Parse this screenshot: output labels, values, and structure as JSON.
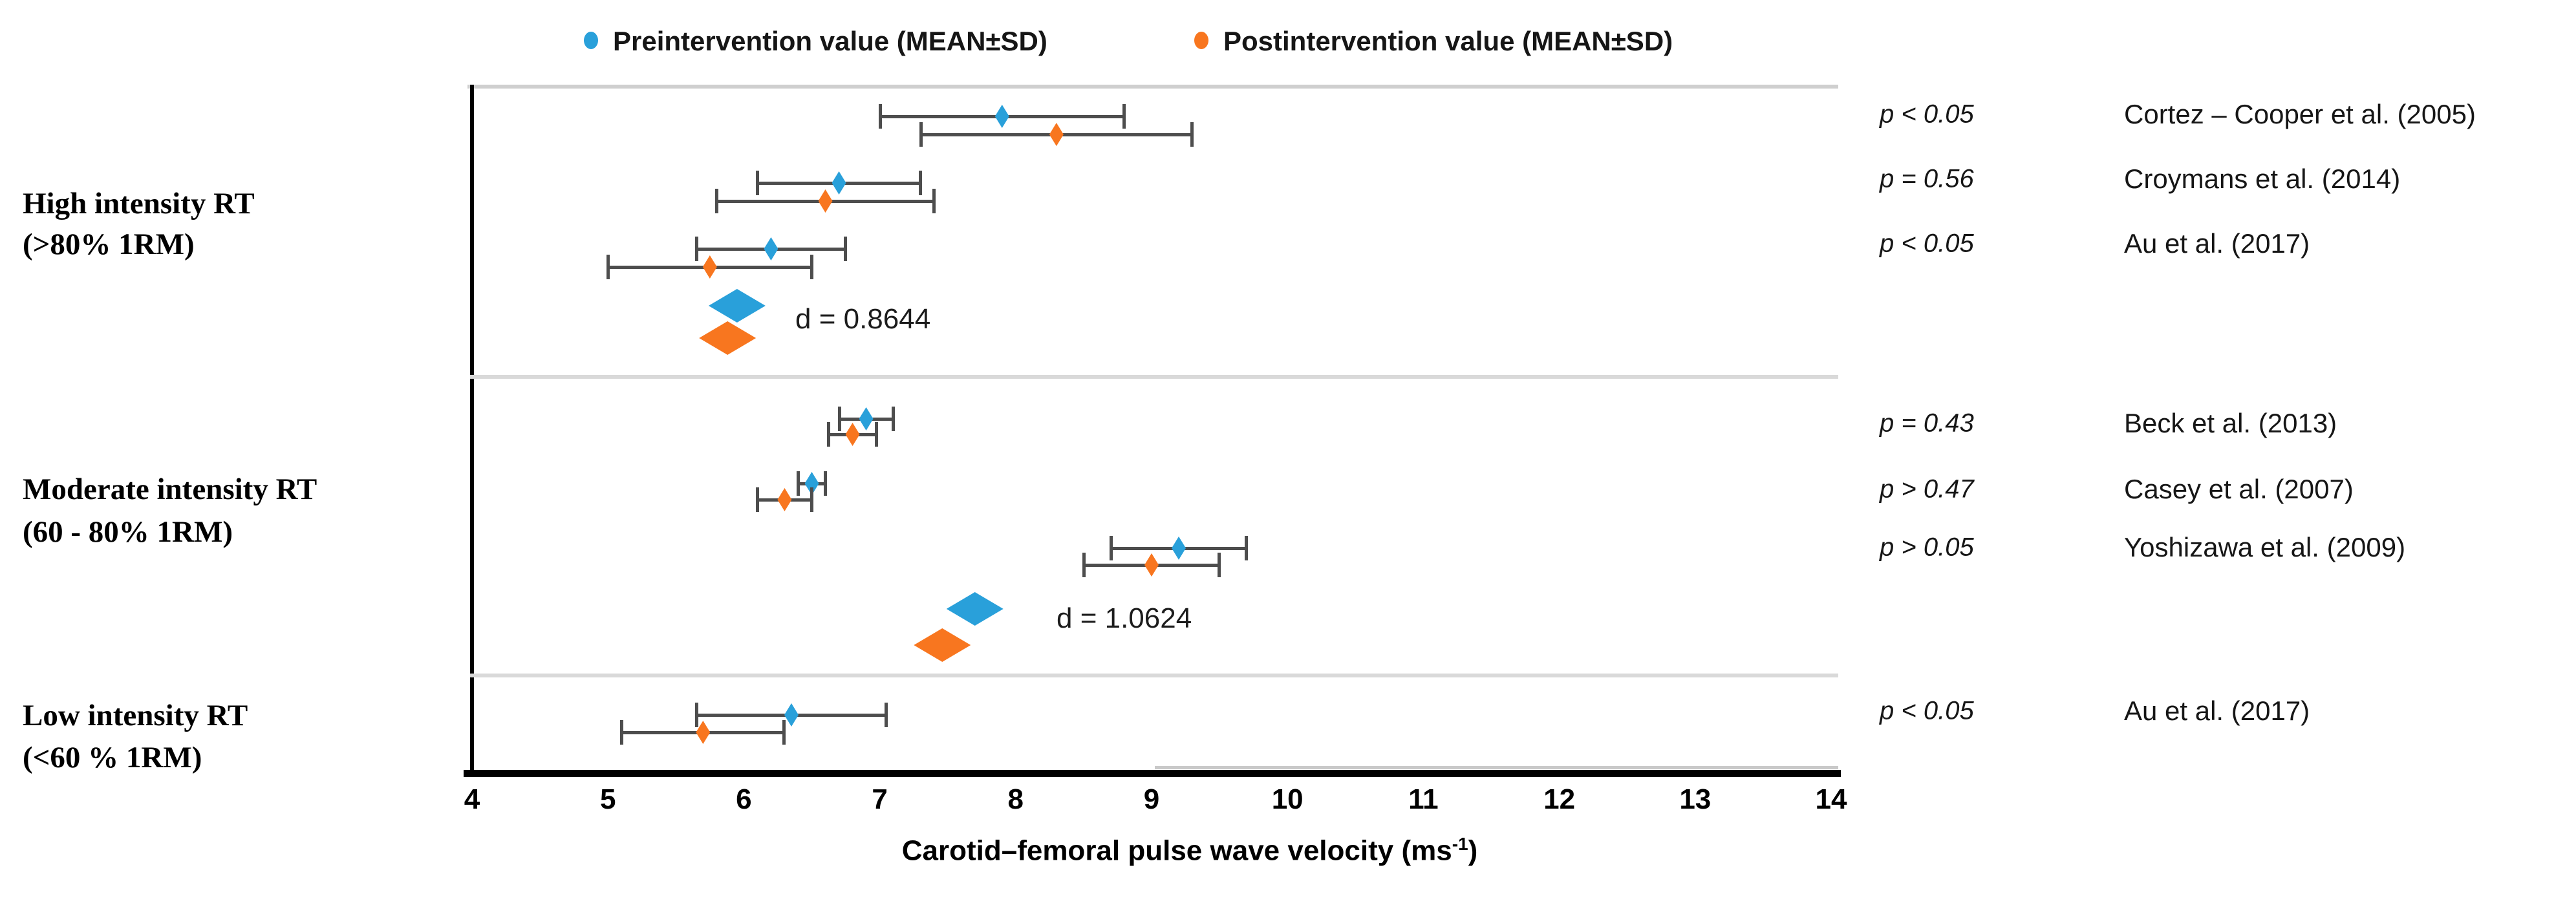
{
  "figure": {
    "type_note": "Forest-style dot plot of pre vs post intervention carotid-femoral pulse wave velocity grouped by resistance-training intensity"
  },
  "chart_data": {
    "type": "scatter",
    "legend": {
      "pre_label": "Preintervention value (MEAN±SD)",
      "post_label": "Postintervention value (MEAN±SD)"
    },
    "colors": {
      "pre": "#29A0DA",
      "post": "#F8761F",
      "error_bar": "#4D4D4D",
      "divider": "#D9D9D9",
      "top_border": "#CFCFCF",
      "axis": "#000000"
    },
    "xlabel_main": "Carotid–femoral pulse wave velocity (ms",
    "xlabel_sup": "-1",
    "xlabel_close": ")",
    "xlim": [
      4,
      14
    ],
    "ticks": [
      4,
      5,
      6,
      7,
      8,
      9,
      10,
      11,
      12,
      13,
      14
    ],
    "grid": "off",
    "legend_position": "top",
    "groups": [
      {
        "label": [
          "High intensity RT",
          "(>80% 1RM)"
        ],
        "studies": [
          {
            "study": "Cortez – Cooper et al. (2005)",
            "p": "p < 0.05",
            "pre": {
              "mean": 7.9,
              "sd": 0.9
            },
            "post": {
              "mean": 8.3,
              "sd": 1.0
            }
          },
          {
            "study": "Croymans et al. (2014)",
            "p": "p = 0.56",
            "pre": {
              "mean": 6.7,
              "sd": 0.6
            },
            "post": {
              "mean": 6.6,
              "sd": 0.8
            }
          },
          {
            "study": "Au et al. (2017)",
            "p": "p < 0.05",
            "pre": {
              "mean": 6.2,
              "sd": 0.55
            },
            "post": {
              "mean": 5.75,
              "sd": 0.75
            }
          }
        ],
        "effect": {
          "label": "d = 0.8644",
          "pre_mean": 5.95,
          "post_mean": 5.88
        }
      },
      {
        "label": [
          "Moderate intensity RT",
          "(60 - 80% 1RM)"
        ],
        "studies": [
          {
            "study": "Beck et al. (2013)",
            "p": "p = 0.43",
            "pre": {
              "mean": 6.9,
              "sd": 0.2
            },
            "post": {
              "mean": 6.8,
              "sd": 0.18
            }
          },
          {
            "study": "Casey et al. (2007)",
            "p": "p > 0.47",
            "pre": {
              "mean": 6.5,
              "sd": 0.1
            },
            "post": {
              "mean": 6.3,
              "sd": 0.2
            }
          },
          {
            "study": "Yoshizawa et al. (2009)",
            "p": "p > 0.05",
            "pre": {
              "mean": 9.2,
              "sd": 0.5
            },
            "post": {
              "mean": 9.0,
              "sd": 0.5
            }
          }
        ],
        "effect": {
          "label": "d = 1.0624",
          "pre_mean": 7.7,
          "post_mean": 7.46
        }
      },
      {
        "label": [
          "Low intensity RT",
          "(<60 % 1RM)"
        ],
        "studies": [
          {
            "study": "Au et al. (2017)",
            "p": "p < 0.05",
            "pre": {
              "mean": 6.35,
              "sd": 0.7
            },
            "post": {
              "mean": 5.7,
              "sd": 0.6
            }
          }
        ],
        "effect": null
      }
    ]
  }
}
